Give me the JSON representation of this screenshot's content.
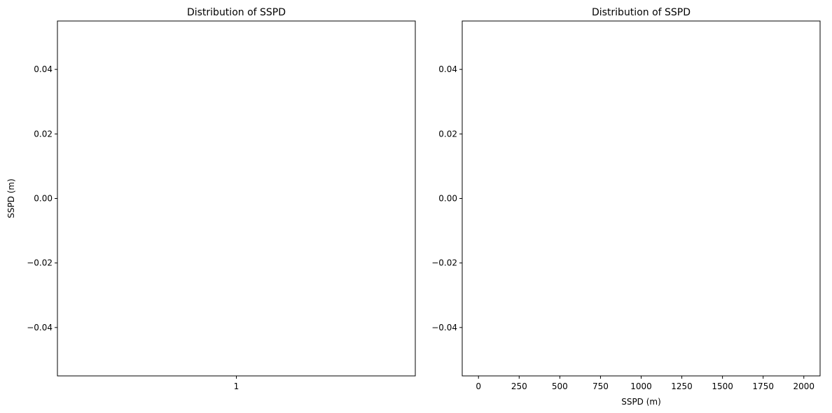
{
  "chart_data": [
    {
      "type": "box",
      "title": "Distribution of SSPD",
      "xlabel": "",
      "ylabel": "SSPD (m)",
      "x_ticks": [
        "1"
      ],
      "xlim": [
        0.5,
        1.5
      ],
      "y_ticks": [
        0.04,
        0.02,
        0.0,
        -0.02,
        -0.04
      ],
      "y_tick_labels": [
        "0.04",
        "0.02",
        "0.00",
        "−0.02",
        "−0.04"
      ],
      "ylim": [
        -0.055,
        0.055
      ],
      "grid": false,
      "data": []
    },
    {
      "type": "scatter",
      "title": "Distribution of SSPD",
      "xlabel": "SSPD (m)",
      "ylabel": "",
      "x_ticks": [
        0,
        250,
        500,
        750,
        1000,
        1250,
        1500,
        1750,
        2000
      ],
      "x_tick_labels": [
        "0",
        "250",
        "500",
        "750",
        "1000",
        "1250",
        "1500",
        "1750",
        "2000"
      ],
      "xlim": [
        -100,
        2100
      ],
      "y_ticks": [
        0.04,
        0.02,
        0.0,
        -0.02,
        -0.04
      ],
      "y_tick_labels": [
        "0.04",
        "0.02",
        "0.00",
        "−0.02",
        "−0.04"
      ],
      "ylim": [
        -0.055,
        0.055
      ],
      "grid": false,
      "data": []
    }
  ]
}
